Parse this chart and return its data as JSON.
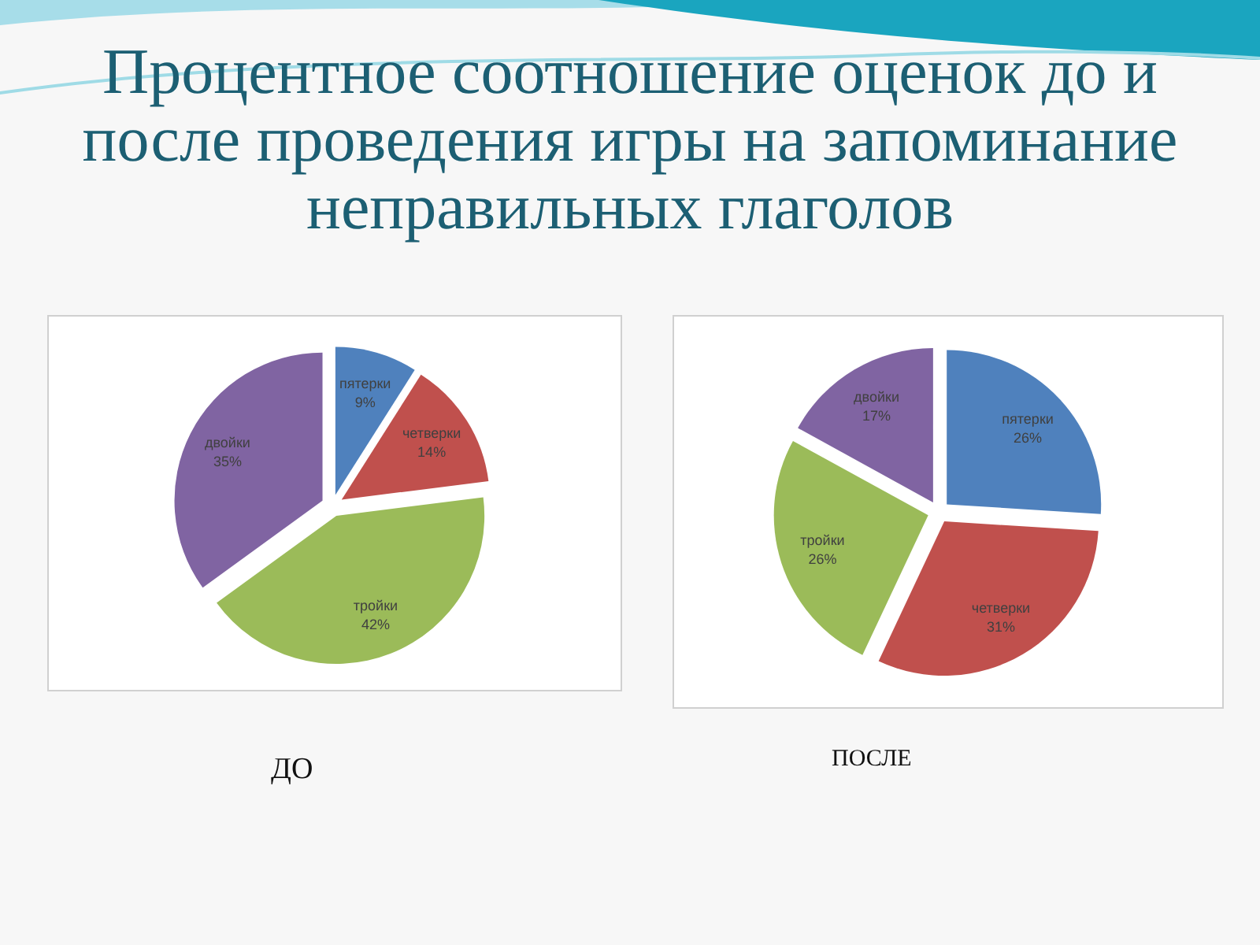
{
  "chart_data": [
    {
      "type": "pie",
      "title": "Процентное соотношение оценок до и после проведения игры на запоминание неправильных глаголов",
      "categories": [
        "пятерки",
        "четверки",
        "тройки",
        "двойки"
      ],
      "values": [
        9,
        14,
        42,
        35
      ],
      "value_labels": [
        "9%",
        "14%",
        "42%",
        "35%"
      ],
      "colors": [
        "#4f81bd",
        "#c0504d",
        "#9bbb59",
        "#8064a2"
      ],
      "annotations": [
        "ДО"
      ]
    },
    {
      "type": "pie",
      "categories": [
        "пятерки",
        "четверки",
        "тройки",
        "двойки"
      ],
      "values": [
        26,
        31,
        26,
        17
      ],
      "value_labels": [
        "26%",
        "31%",
        "26%",
        "17%"
      ],
      "colors": [
        "#4f81bd",
        "#c0504d",
        "#9bbb59",
        "#8064a2"
      ],
      "annotations": [
        "ПОСЛЕ"
      ]
    }
  ]
}
